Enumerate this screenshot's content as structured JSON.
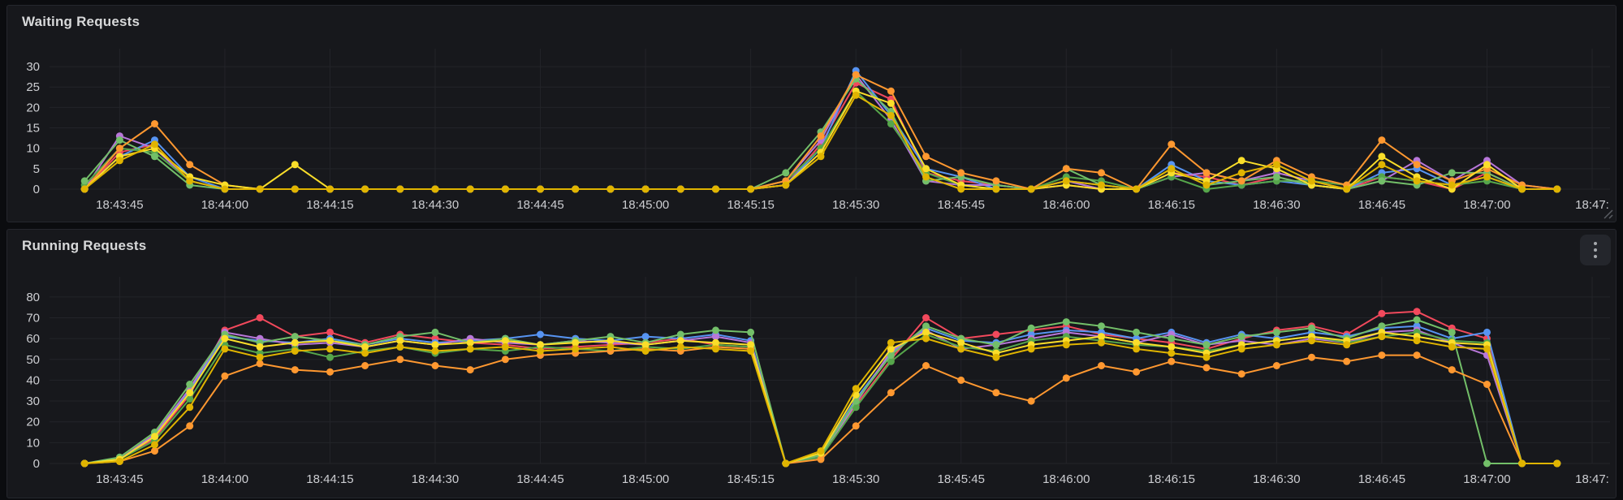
{
  "panels": [
    {
      "title": "Waiting Requests",
      "has_menu": false,
      "chart_data": {
        "type": "line",
        "legend": "hidden",
        "grid": true,
        "x_start": "18:43:40",
        "x_interval_seconds": 5,
        "x_ticks": [
          {
            "label": "18:43:45",
            "index": 1
          },
          {
            "label": "18:44:00",
            "index": 4
          },
          {
            "label": "18:44:15",
            "index": 7
          },
          {
            "label": "18:44:30",
            "index": 10
          },
          {
            "label": "18:44:45",
            "index": 13
          },
          {
            "label": "18:45:00",
            "index": 16
          },
          {
            "label": "18:45:15",
            "index": 19
          },
          {
            "label": "18:45:30",
            "index": 22
          },
          {
            "label": "18:45:45",
            "index": 25
          },
          {
            "label": "18:46:00",
            "index": 28
          },
          {
            "label": "18:46:15",
            "index": 31
          },
          {
            "label": "18:46:30",
            "index": 34
          },
          {
            "label": "18:46:45",
            "index": 37
          },
          {
            "label": "18:47:00",
            "index": 40
          },
          {
            "label": "18:47:",
            "index": 43
          }
        ],
        "ylim": [
          0,
          32
        ],
        "y_ticks": [
          0,
          5,
          10,
          15,
          20,
          25,
          30
        ],
        "series": [
          {
            "name": "red",
            "color": "#F2495C",
            "values": [
              0,
              9,
              11,
              2,
              0,
              0,
              0,
              0,
              0,
              0,
              0,
              0,
              0,
              0,
              0,
              0,
              0,
              0,
              0,
              0,
              1,
              11,
              26,
              22,
              4,
              2,
              1,
              0,
              1,
              0,
              0,
              4,
              3,
              1,
              3,
              1,
              0,
              3,
              2,
              0,
              4,
              0,
              0
            ]
          },
          {
            "name": "blue",
            "color": "#5794F2",
            "values": [
              0,
              8,
              12,
              3,
              0,
              0,
              0,
              0,
              0,
              0,
              0,
              0,
              0,
              0,
              0,
              0,
              0,
              0,
              0,
              0,
              1,
              10,
              29,
              18,
              5,
              3,
              0,
              0,
              2,
              1,
              0,
              6,
              2,
              1,
              2,
              1,
              0,
              4,
              5,
              1,
              3,
              0,
              0
            ]
          },
          {
            "name": "purple",
            "color": "#B877D9",
            "values": [
              0,
              13,
              10,
              2,
              0,
              0,
              0,
              0,
              0,
              0,
              0,
              0,
              0,
              0,
              0,
              0,
              0,
              0,
              0,
              0,
              2,
              12,
              28,
              17,
              2,
              1,
              1,
              0,
              2,
              0,
              0,
              3,
              4,
              2,
              4,
              2,
              0,
              2,
              7,
              2,
              7,
              1,
              0
            ]
          },
          {
            "name": "dark-green",
            "color": "#56A64B",
            "values": [
              1,
              10,
              9,
              2,
              0,
              0,
              0,
              0,
              0,
              0,
              0,
              0,
              0,
              0,
              0,
              0,
              0,
              0,
              0,
              0,
              2,
              10,
              24,
              16,
              4,
              1,
              0,
              0,
              3,
              2,
              0,
              3,
              0,
              1,
              2,
              2,
              1,
              3,
              2,
              1,
              2,
              0,
              0
            ]
          },
          {
            "name": "green",
            "color": "#73BF69",
            "values": [
              2,
              12,
              8,
              1,
              0,
              0,
              0,
              0,
              0,
              0,
              0,
              0,
              0,
              0,
              0,
              0,
              0,
              0,
              0,
              0,
              4,
              14,
              27,
              19,
              2,
              3,
              1,
              0,
              5,
              1,
              0,
              5,
              1,
              2,
              3,
              1,
              0,
              2,
              1,
              4,
              4,
              0,
              0
            ]
          },
          {
            "name": "orange",
            "color": "#FF9830",
            "values": [
              0,
              10,
              16,
              6,
              1,
              0,
              0,
              0,
              0,
              0,
              0,
              0,
              0,
              0,
              0,
              0,
              0,
              0,
              0,
              0,
              2,
              13,
              28,
              24,
              8,
              4,
              2,
              0,
              5,
              4,
              0,
              11,
              4,
              2,
              7,
              3,
              1,
              12,
              6,
              2,
              5,
              1,
              0
            ]
          },
          {
            "name": "yellow",
            "color": "#FADE2A",
            "values": [
              0,
              8,
              10,
              3,
              1,
              0,
              6,
              0,
              0,
              0,
              0,
              0,
              0,
              0,
              0,
              0,
              0,
              0,
              0,
              0,
              1,
              9,
              24,
              21,
              5,
              1,
              0,
              0,
              1,
              0,
              0,
              4,
              2,
              7,
              5,
              1,
              0,
              8,
              3,
              0,
              6,
              0,
              0
            ]
          },
          {
            "name": "gold",
            "color": "#E0B400",
            "values": [
              0,
              7,
              11,
              2,
              0,
              0,
              0,
              0,
              0,
              0,
              0,
              0,
              0,
              0,
              0,
              0,
              0,
              0,
              0,
              0,
              1,
              8,
              23,
              18,
              3,
              0,
              0,
              0,
              2,
              1,
              0,
              5,
              1,
              4,
              6,
              2,
              0,
              6,
              2,
              1,
              3,
              0,
              0
            ]
          }
        ]
      }
    },
    {
      "title": "Running Requests",
      "has_menu": true,
      "chart_data": {
        "type": "line",
        "legend": "hidden",
        "grid": true,
        "x_start": "18:43:40",
        "x_interval_seconds": 5,
        "x_ticks": [
          {
            "label": "18:43:45",
            "index": 1
          },
          {
            "label": "18:44:00",
            "index": 4
          },
          {
            "label": "18:44:15",
            "index": 7
          },
          {
            "label": "18:44:30",
            "index": 10
          },
          {
            "label": "18:44:45",
            "index": 13
          },
          {
            "label": "18:45:00",
            "index": 16
          },
          {
            "label": "18:45:15",
            "index": 19
          },
          {
            "label": "18:45:30",
            "index": 22
          },
          {
            "label": "18:45:45",
            "index": 25
          },
          {
            "label": "18:46:00",
            "index": 28
          },
          {
            "label": "18:46:15",
            "index": 31
          },
          {
            "label": "18:46:30",
            "index": 34
          },
          {
            "label": "18:46:45",
            "index": 37
          },
          {
            "label": "18:47:00",
            "index": 40
          },
          {
            "label": "18:47:",
            "index": 43
          }
        ],
        "ylim": [
          0,
          85
        ],
        "y_ticks": [
          0,
          10,
          20,
          30,
          40,
          50,
          60,
          70,
          80
        ],
        "series": [
          {
            "name": "red",
            "color": "#F2495C",
            "values": [
              0,
              2,
              12,
              33,
              64,
              70,
              61,
              63,
              58,
              62,
              60,
              58,
              57,
              55,
              56,
              57,
              58,
              60,
              57,
              56,
              0,
              3,
              28,
              50,
              70,
              60,
              62,
              64,
              66,
              62,
              60,
              58,
              55,
              60,
              64,
              66,
              62,
              72,
              73,
              65,
              60,
              0,
              0
            ]
          },
          {
            "name": "blue",
            "color": "#5794F2",
            "values": [
              0,
              2,
              13,
              35,
              61,
              59,
              58,
              60,
              57,
              60,
              58,
              59,
              60,
              62,
              60,
              59,
              61,
              60,
              62,
              59,
              0,
              4,
              31,
              53,
              65,
              59,
              58,
              62,
              64,
              63,
              60,
              63,
              58,
              62,
              60,
              63,
              61,
              65,
              66,
              60,
              63,
              0,
              0
            ]
          },
          {
            "name": "purple",
            "color": "#B877D9",
            "values": [
              0,
              2,
              14,
              36,
              63,
              60,
              57,
              58,
              56,
              59,
              57,
              60,
              58,
              57,
              59,
              58,
              57,
              59,
              61,
              58,
              0,
              3,
              29,
              54,
              64,
              55,
              57,
              60,
              63,
              61,
              58,
              62,
              57,
              59,
              57,
              60,
              58,
              63,
              64,
              58,
              52,
              0,
              0
            ]
          },
          {
            "name": "dark-green",
            "color": "#56A64B",
            "values": [
              0,
              2,
              11,
              31,
              57,
              53,
              55,
              51,
              54,
              56,
              53,
              55,
              54,
              56,
              55,
              54,
              56,
              55,
              57,
              56,
              0,
              3,
              27,
              49,
              62,
              56,
              54,
              59,
              61,
              59,
              57,
              56,
              54,
              57,
              59,
              61,
              58,
              61,
              63,
              59,
              58,
              0,
              0
            ]
          },
          {
            "name": "green",
            "color": "#73BF69",
            "values": [
              0,
              3,
              15,
              38,
              62,
              58,
              61,
              59,
              57,
              61,
              63,
              58,
              60,
              57,
              59,
              61,
              58,
              62,
              64,
              63,
              0,
              4,
              30,
              52,
              66,
              60,
              57,
              65,
              68,
              66,
              63,
              60,
              57,
              61,
              63,
              65,
              60,
              66,
              69,
              63,
              0,
              0,
              0
            ]
          },
          {
            "name": "orange",
            "color": "#FF9830",
            "values": [
              0,
              1,
              6,
              18,
              42,
              48,
              45,
              44,
              47,
              50,
              47,
              45,
              50,
              52,
              53,
              54,
              55,
              54,
              56,
              55,
              0,
              2,
              18,
              34,
              47,
              40,
              34,
              30,
              41,
              47,
              44,
              49,
              46,
              43,
              47,
              51,
              49,
              52,
              52,
              45,
              38,
              0,
              0
            ]
          },
          {
            "name": "yellow",
            "color": "#FADE2A",
            "values": [
              0,
              2,
              13,
              34,
              60,
              56,
              58,
              59,
              56,
              59,
              57,
              58,
              59,
              57,
              58,
              59,
              57,
              59,
              58,
              57,
              0,
              5,
              33,
              55,
              63,
              58,
              53,
              57,
              59,
              61,
              58,
              56,
              53,
              57,
              59,
              61,
              59,
              63,
              61,
              58,
              57,
              0,
              0
            ]
          },
          {
            "name": "gold",
            "color": "#E0B400",
            "values": [
              0,
              1,
              9,
              27,
              55,
              51,
              54,
              55,
              53,
              56,
              54,
              55,
              56,
              54,
              55,
              56,
              54,
              56,
              55,
              54,
              0,
              6,
              36,
              58,
              60,
              55,
              51,
              55,
              57,
              58,
              55,
              53,
              51,
              55,
              57,
              59,
              57,
              61,
              59,
              56,
              55,
              0,
              0
            ]
          }
        ]
      }
    }
  ]
}
